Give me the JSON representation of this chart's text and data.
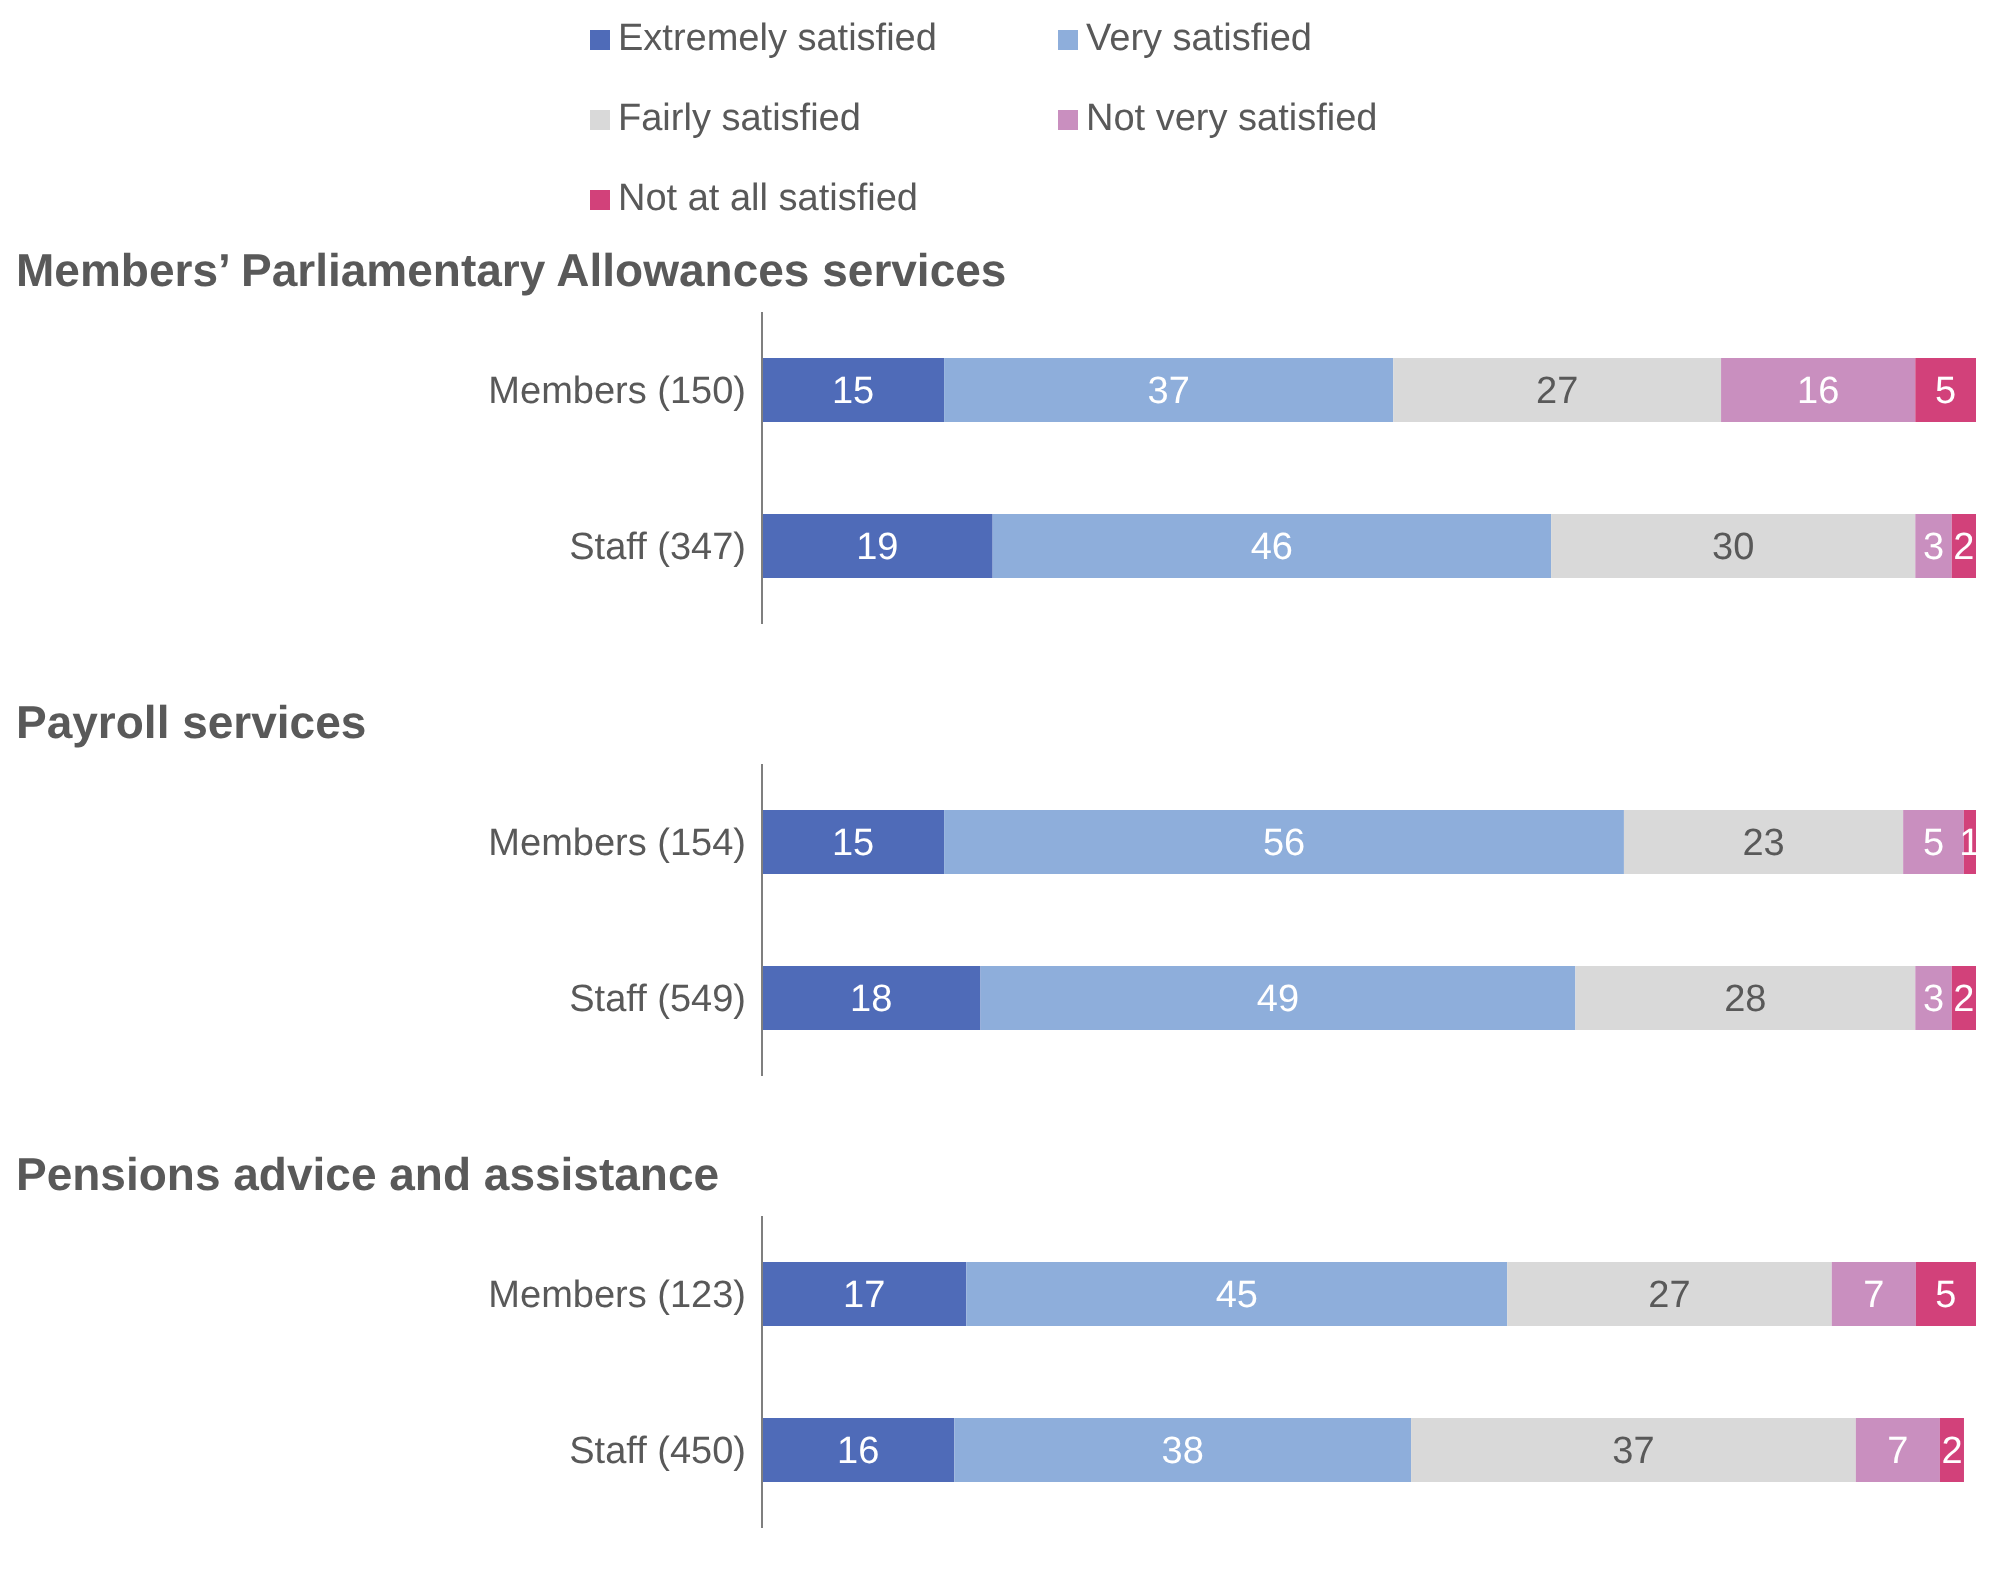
{
  "chart_data": [
    {
      "type": "bar",
      "orientation": "horizontal",
      "stacked": true,
      "title": "Members’ Parliamentary Allowances services",
      "categories": [
        "Members (150)",
        "Staff (347)"
      ],
      "tick_labels": "y",
      "data_labels": true,
      "legend": "top",
      "series": [
        {
          "name": "Extremely satisfied",
          "color": "#4f6bb8",
          "values": [
            15,
            19
          ]
        },
        {
          "name": "Very satisfied",
          "color": "#8eaedb",
          "values": [
            37,
            46
          ]
        },
        {
          "name": "Fairly satisfied",
          "color": "#d9d9d9",
          "values": [
            27,
            30
          ]
        },
        {
          "name": "Not very satisfied",
          "color": "#c98fbf",
          "values": [
            16,
            3
          ]
        },
        {
          "name": "Not at all satisfied",
          "color": "#d2417a",
          "values": [
            5,
            2
          ]
        }
      ]
    },
    {
      "type": "bar",
      "orientation": "horizontal",
      "stacked": true,
      "title": "Payroll services",
      "categories": [
        "Members (154)",
        "Staff (549)"
      ],
      "tick_labels": "y",
      "data_labels": true,
      "series": [
        {
          "color": "#4f6bb8",
          "values": [
            15,
            18
          ]
        },
        {
          "color": "#8eaedb",
          "values": [
            56,
            49
          ]
        },
        {
          "color": "#d9d9d9",
          "values": [
            23,
            28
          ]
        },
        {
          "color": "#c98fbf",
          "values": [
            5,
            3
          ]
        },
        {
          "color": "#d2417a",
          "values": [
            1,
            2
          ]
        }
      ]
    },
    {
      "type": "bar",
      "orientation": "horizontal",
      "stacked": true,
      "title": "Pensions advice and assistance",
      "categories": [
        "Members (123)",
        "Staff (450)"
      ],
      "tick_labels": "y",
      "data_labels": true,
      "series": [
        {
          "color": "#4f6bb8",
          "values": [
            17,
            16
          ]
        },
        {
          "color": "#8eaedb",
          "values": [
            45,
            38
          ]
        },
        {
          "color": "#d9d9d9",
          "values": [
            27,
            37
          ]
        },
        {
          "color": "#c98fbf",
          "values": [
            7,
            7
          ]
        },
        {
          "color": "#d2417a",
          "values": [
            5,
            2
          ]
        }
      ]
    }
  ]
}
